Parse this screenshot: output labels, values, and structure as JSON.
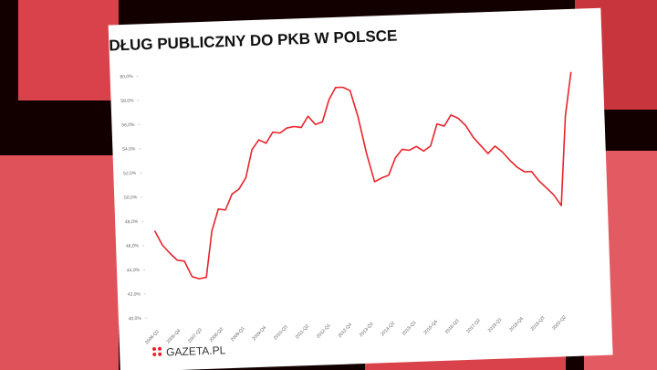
{
  "chart_data": {
    "type": "line",
    "title": "DŁUG PUBLICZNY DO PKB W POLSCE",
    "brand": "GAZETA.PL",
    "categories": [
      "2006-Q1",
      null,
      null,
      "2006-Q4",
      null,
      null,
      "2007-Q3",
      null,
      null,
      "2008-Q2",
      null,
      null,
      "2009-Q1",
      null,
      null,
      "2009-Q4",
      null,
      null,
      "2010-Q3",
      null,
      null,
      "2011-Q2",
      null,
      null,
      "2012-Q1",
      null,
      null,
      "2012-Q4",
      null,
      null,
      "2013-Q3",
      null,
      null,
      "2014-Q2",
      null,
      null,
      "2015-Q1",
      null,
      null,
      "2015-Q4",
      null,
      null,
      "2016-Q3",
      null,
      null,
      "2017-Q2",
      null,
      null,
      "2018-Q1",
      null,
      null,
      "2018-Q4",
      null,
      null,
      "2019-Q3",
      null,
      null,
      "2020-Q2",
      null,
      null
    ],
    "series": [
      {
        "name": "Dług publiczny do PKB",
        "color": "#e8242b",
        "values": [
          47.2,
          46.0,
          45.3,
          44.7,
          44.6,
          43.3,
          43.1,
          43.2,
          47.0,
          48.8,
          48.7,
          50.0,
          50.4,
          51.3,
          53.6,
          54.4,
          54.1,
          55.0,
          54.9,
          55.3,
          55.4,
          55.3,
          56.2,
          55.5,
          55.7,
          57.5,
          58.5,
          58.5,
          58.2,
          56.0,
          53.0,
          50.6,
          50.9,
          51.1,
          52.5,
          53.2,
          53.1,
          53.4,
          53.0,
          53.4,
          55.2,
          55.0,
          55.9,
          55.6,
          55.0,
          54.0,
          53.3,
          52.6,
          53.2,
          52.7,
          52.0,
          51.4,
          51.0,
          51.0,
          50.2,
          49.6,
          49.0,
          48.1,
          55.5,
          59.1
        ]
      }
    ],
    "ylim": [
      40,
      60
    ],
    "yticks": [
      {
        "value": 40,
        "label": "40,0%"
      },
      {
        "value": 42,
        "label": "42,0%"
      },
      {
        "value": 44,
        "label": "44,0%"
      },
      {
        "value": 46,
        "label": "46,0%"
      },
      {
        "value": 48,
        "label": "48,0%"
      },
      {
        "value": 50,
        "label": "50,0%"
      },
      {
        "value": 52,
        "label": "52,0%"
      },
      {
        "value": 54,
        "label": "54,0%"
      },
      {
        "value": 56,
        "label": "56,0%"
      },
      {
        "value": 58,
        "label": "58,0%"
      },
      {
        "value": 60,
        "label": "60,0%"
      }
    ],
    "grid": false
  }
}
